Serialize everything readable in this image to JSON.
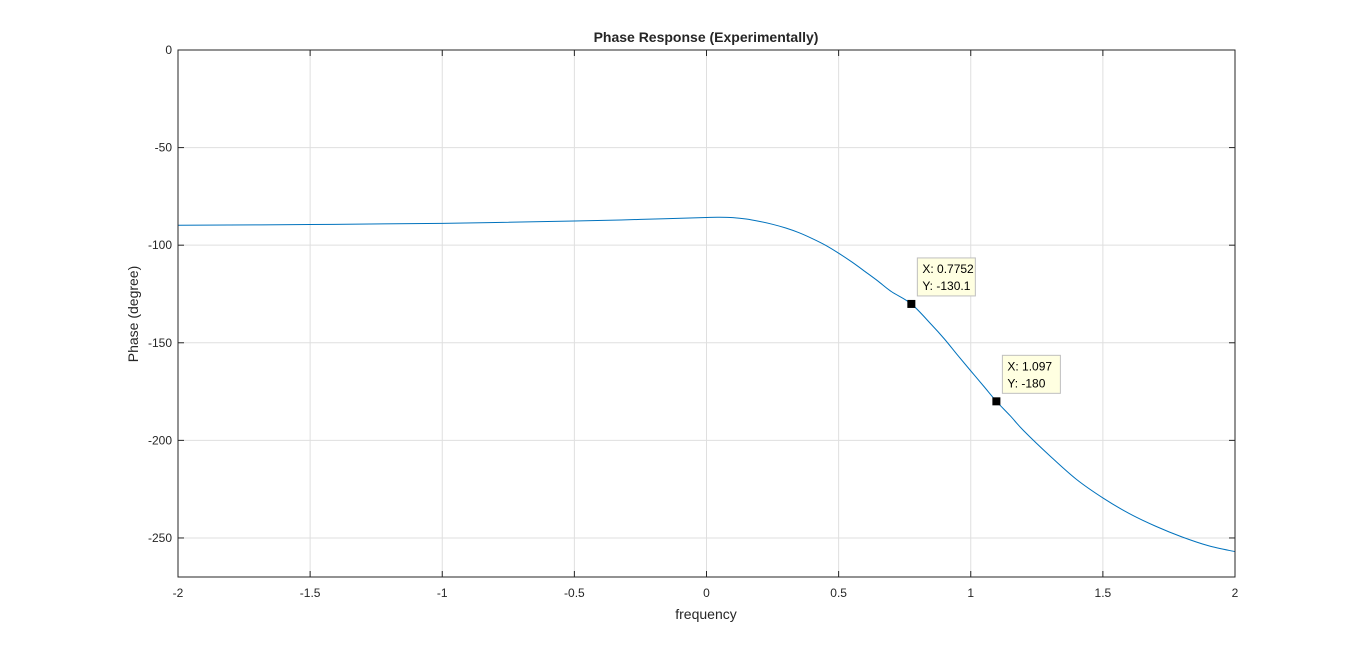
{
  "chart_data": {
    "type": "line",
    "title": "Phase Response (Experimentally)",
    "xlabel": "frequency",
    "ylabel": "Phase (degree)",
    "xlim": [
      -2,
      2
    ],
    "ylim": [
      -270,
      0
    ],
    "x_ticks": [
      -2,
      -1.5,
      -1,
      -0.5,
      0,
      0.5,
      1,
      1.5,
      2
    ],
    "x_tick_labels": [
      "-2",
      "-1.5",
      "-1",
      "-0.5",
      "0",
      "0.5",
      "1",
      "1.5",
      "2"
    ],
    "y_ticks": [
      0,
      -50,
      -100,
      -150,
      -200,
      -250
    ],
    "y_tick_labels": [
      "0",
      "-50",
      "-100",
      "-150",
      "-200",
      "-250"
    ],
    "grid": true,
    "series": [
      {
        "color": "#0072BD",
        "x": [
          -2,
          -1.5,
          -1,
          -0.5,
          -0.25,
          0,
          0.05,
          0.1,
          0.15,
          0.2,
          0.25,
          0.3,
          0.35,
          0.4,
          0.45,
          0.5,
          0.55,
          0.6,
          0.65,
          0.7,
          0.7752,
          0.85,
          0.9,
          0.95,
          1.0,
          1.05,
          1.097,
          1.15,
          1.2,
          1.3,
          1.4,
          1.5,
          1.6,
          1.7,
          1.8,
          1.9,
          2.0
        ],
        "y": [
          -89.8,
          -89.4,
          -88.8,
          -87.6,
          -86.8,
          -85.8,
          -85.7,
          -85.9,
          -86.6,
          -87.8,
          -89.3,
          -91.2,
          -93.6,
          -96.6,
          -100.0,
          -104.1,
          -108.6,
          -113.5,
          -118.5,
          -123.8,
          -130.1,
          -140.5,
          -148.0,
          -156.3,
          -164.4,
          -172.4,
          -180.0,
          -187.5,
          -195.0,
          -208.0,
          -220.0,
          -229.5,
          -237.5,
          -244.0,
          -249.5,
          -254.0,
          -257.0
        ]
      }
    ],
    "datatips": [
      {
        "x": 0.7752,
        "y": -130.1,
        "x_text": "X: 0.7752",
        "y_text": "Y: -130.1"
      },
      {
        "x": 1.097,
        "y": -180,
        "x_text": "X: 1.097",
        "y_text": "Y: -180"
      }
    ]
  }
}
